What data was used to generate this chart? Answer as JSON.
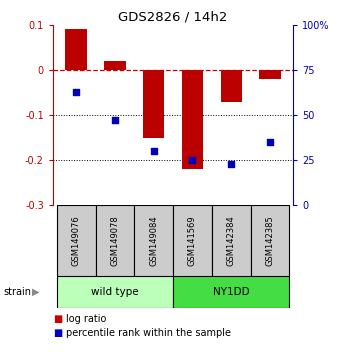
{
  "title": "GDS2826 / 14h2",
  "samples": [
    "GSM149076",
    "GSM149078",
    "GSM149084",
    "GSM141569",
    "GSM142384",
    "GSM142385"
  ],
  "log_ratios": [
    0.09,
    0.02,
    -0.15,
    -0.22,
    -0.07,
    -0.02
  ],
  "percentile_ranks": [
    63,
    47,
    30,
    25,
    23,
    35
  ],
  "strain_groups": [
    {
      "label": "wild type",
      "indices": [
        0,
        1,
        2
      ],
      "color": "#bbffbb"
    },
    {
      "label": "NY1DD",
      "indices": [
        3,
        4,
        5
      ],
      "color": "#44dd44"
    }
  ],
  "ylim": [
    -0.3,
    0.1
  ],
  "yticks_left": [
    -0.3,
    -0.2,
    -0.1,
    0.0,
    0.1
  ],
  "yticks_right": [
    0,
    25,
    50,
    75,
    100
  ],
  "bar_color": "#bb0000",
  "dot_color": "#0000bb",
  "dashed_line_color": "#cc0000",
  "background_color": "#ffffff",
  "legend_log_ratio_color": "#cc0000",
  "legend_percentile_color": "#0000cc"
}
